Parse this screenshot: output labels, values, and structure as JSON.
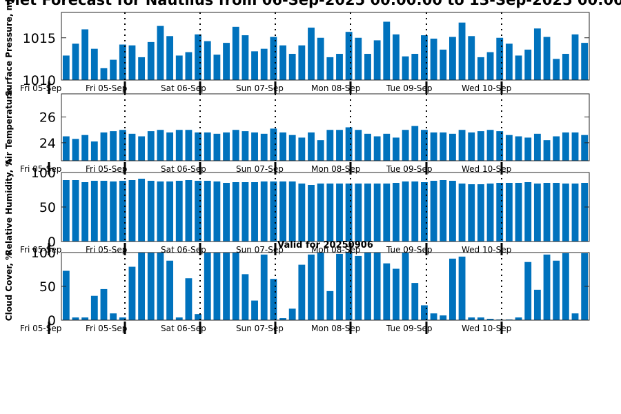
{
  "figure": {
    "title": "Met Forecast for Nautilus from 06-Sep-2025 00:00:00 to 13-Sep-2025 00:00:00",
    "bar_color": "#0072BD"
  },
  "chart_data": [
    {
      "type": "bar",
      "ylabel": "Surface Pressure, mb",
      "ylim": [
        1010,
        1018
      ],
      "yticks": [
        1010,
        1015
      ],
      "day_labels": [
        "Fri 05-Sep",
        "Fri 05-Sep",
        "Sat 06-Sep",
        "Sun 07-Sep",
        "Mon 08-Sep",
        "Tue 09-Sep",
        "Wed 10-Sep"
      ],
      "values": [
        1012.9,
        1014.3,
        1016.0,
        1013.7,
        1011.4,
        1012.4,
        1014.2,
        1014.1,
        1012.7,
        1014.5,
        1016.4,
        1015.2,
        1012.9,
        1013.3,
        1015.4,
        1014.6,
        1013.0,
        1014.4,
        1016.3,
        1015.3,
        1013.4,
        1013.7,
        1015.1,
        1014.1,
        1013.1,
        1014.1,
        1016.2,
        1015.0,
        1012.7,
        1013.1,
        1015.7,
        1015.0,
        1013.1,
        1014.7,
        1016.9,
        1015.4,
        1012.8,
        1013.1,
        1015.3,
        1014.9,
        1013.6,
        1015.1,
        1016.8,
        1015.2,
        1012.7,
        1013.3,
        1015.0,
        1014.3,
        1012.9,
        1013.6,
        1016.1,
        1015.1,
        1012.5,
        1013.1,
        1015.4,
        1014.4
      ]
    },
    {
      "type": "bar",
      "ylabel": "Air Temperature",
      "ylim": [
        22.6,
        27.8
      ],
      "yticks": [
        24,
        26
      ],
      "day_labels": [
        "Fri 05-Sep",
        "Fri 05-Sep",
        "Sat 06-Sep",
        "Sun 07-Sep",
        "Mon 08-Sep",
        "Tue 09-Sep",
        "Wed 10-Sep"
      ],
      "values": [
        24.5,
        24.3,
        24.6,
        24.1,
        24.8,
        24.9,
        25.0,
        24.7,
        24.5,
        24.9,
        25.0,
        24.8,
        25.0,
        25.0,
        24.8,
        24.8,
        24.7,
        24.8,
        25.0,
        24.9,
        24.8,
        24.7,
        25.1,
        24.8,
        24.6,
        24.4,
        24.8,
        24.2,
        25.0,
        25.0,
        25.2,
        25.0,
        24.7,
        24.5,
        24.7,
        24.4,
        25.0,
        25.3,
        25.0,
        24.8,
        24.8,
        24.7,
        25.0,
        24.8,
        24.9,
        25.0,
        24.9,
        24.6,
        24.5,
        24.4,
        24.7,
        24.2,
        24.5,
        24.8,
        24.8,
        24.6
      ]
    },
    {
      "type": "bar",
      "ylabel": "Relative Humidity, %",
      "ylim": [
        0,
        100
      ],
      "yticks": [
        0,
        50,
        100
      ],
      "day_labels": [
        "Fri 05-Sep",
        "Fri 05-Sep",
        "Sat 06-Sep",
        "Sun 07-Sep",
        "Mon 08-Sep",
        "Tue 09-Sep",
        "Wed 10-Sep"
      ],
      "values": [
        89,
        89,
        86,
        88,
        88,
        87,
        88,
        89,
        91,
        88,
        87,
        87,
        88,
        89,
        88,
        88,
        87,
        85,
        86,
        86,
        86,
        87,
        87,
        87,
        87,
        84,
        82,
        84,
        84,
        84,
        84,
        84,
        84,
        84,
        84,
        85,
        87,
        87,
        86,
        88,
        89,
        88,
        84,
        83,
        83,
        84,
        85,
        85,
        85,
        86,
        84,
        85,
        85,
        84,
        84,
        85
      ]
    },
    {
      "type": "bar",
      "title": "Valid for 20250906",
      "ylabel": "Cloud Cover, %",
      "ylim": [
        0,
        100
      ],
      "yticks": [
        0,
        50,
        100
      ],
      "day_labels": [
        "Fri 05-Sep",
        "Fri 05-Sep",
        "Sat 06-Sep",
        "Sun 07-Sep",
        "Mon 08-Sep",
        "Tue 09-Sep",
        "Wed 10-Sep"
      ],
      "values": [
        73,
        4,
        4,
        36,
        46,
        10,
        4,
        79,
        100,
        100,
        100,
        88,
        4,
        62,
        9,
        100,
        100,
        100,
        100,
        68,
        29,
        97,
        61,
        3,
        17,
        82,
        97,
        100,
        43,
        98,
        100,
        95,
        100,
        100,
        84,
        76,
        100,
        55,
        22,
        10,
        7,
        91,
        94,
        4,
        4,
        2,
        1,
        1,
        4,
        86,
        45,
        97,
        88,
        99,
        10,
        99
      ]
    }
  ]
}
